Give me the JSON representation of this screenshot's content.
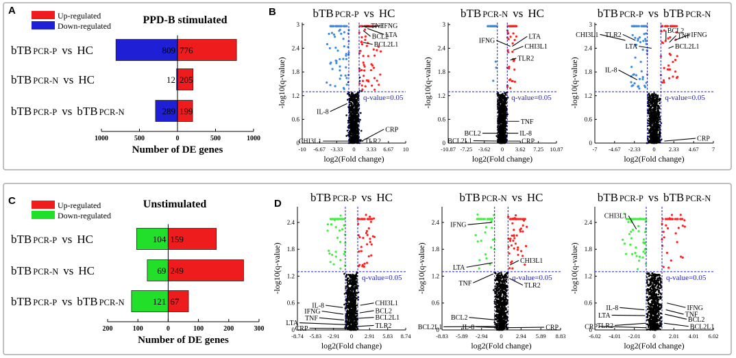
{
  "colors": {
    "up": "#ee1c1c",
    "down_ppd": "#1f1fd6",
    "down_unstim": "#22e02a",
    "vol_up": "#ff2020",
    "vol_down_ppd": "#3a8be0",
    "vol_down_unstim": "#3cf03c",
    "thresh": "#1e1ebe",
    "point": "#000000"
  },
  "chart_data": [
    {
      "panel": "A",
      "type": "bar",
      "title": "PPD-B stimulated",
      "legend": [
        "Up-regulated",
        "Down-regulated"
      ],
      "categories": [
        {
          "main": "bTB",
          "sub1": "PCR-P",
          "mid": "vs",
          "tail": "HC",
          "sub2": ""
        },
        {
          "main": "bTB",
          "sub1": "PCR-N",
          "mid": "vs",
          "tail": "HC",
          "sub2": ""
        },
        {
          "main": "bTB",
          "sub1": "PCR-P",
          "mid": "vs",
          "tail": "bTB",
          "sub2": "PCR-N"
        }
      ],
      "series": [
        {
          "name": "Up-regulated",
          "values": [
            776,
            205,
            199
          ]
        },
        {
          "name": "Down-regulated",
          "values": [
            809,
            12,
            289
          ]
        }
      ],
      "xlabel": "Number of DE genes",
      "xlim": [
        -1000,
        1000
      ],
      "ticks": [
        -1000,
        -500,
        0,
        500,
        1000
      ],
      "tick_labels": [
        "1000",
        "500",
        "0",
        "500",
        "1000"
      ]
    },
    {
      "panel": "C",
      "type": "bar",
      "title": "Unstimulated",
      "legend": [
        "Up-regulated",
        "Down-regulated"
      ],
      "categories": [
        {
          "main": "bTB",
          "sub1": "PCR-P",
          "mid": "vs",
          "tail": "HC",
          "sub2": ""
        },
        {
          "main": "bTB",
          "sub1": "PCR-N",
          "mid": "vs",
          "tail": "HC",
          "sub2": ""
        },
        {
          "main": "bTB",
          "sub1": "PCR-P",
          "mid": "vs",
          "tail": "bTB",
          "sub2": "PCR-N"
        }
      ],
      "series": [
        {
          "name": "Up-regulated",
          "values": [
            159,
            249,
            67
          ]
        },
        {
          "name": "Down-regulated",
          "values": [
            104,
            69,
            121
          ]
        }
      ],
      "xlabel": "Number of DE genes",
      "xlim": [
        -200,
        300
      ],
      "ticks": [
        -200,
        -100,
        0,
        100,
        200,
        300
      ],
      "tick_labels": [
        "200",
        "100",
        "0",
        "100",
        "200",
        "300"
      ]
    },
    {
      "panel": "B1",
      "type": "scatter",
      "palette": "ppd",
      "title": {
        "main": "bTB",
        "sub1": "PCR-P",
        "mid": "vs",
        "tail": "HC",
        "sub2": ""
      },
      "xlabel": "log2(Fold change)",
      "ylabel": "-log10(q-value)",
      "xlim": [
        -10,
        10
      ],
      "ylim": [
        0,
        3.05
      ],
      "xticks": [
        -10,
        -6.67,
        -3.33,
        0,
        3.33,
        6.67,
        10
      ],
      "xtick_labels": [
        "-10",
        "-6.67",
        "-3.33",
        "0",
        "3.33",
        "6.67",
        "10"
      ],
      "yticks": [
        0,
        0.6,
        1.2,
        1.8,
        2.4,
        3
      ],
      "ytick_labels": [
        "0",
        "0.6",
        "1.2",
        "1.8",
        "2.4",
        "3"
      ],
      "fc_cut": 1,
      "q_line": 1.3,
      "q_label": "q-value=0.05",
      "spread": 3.5,
      "sig_max": 6.5,
      "n_sig_up": 45,
      "n_sig_down": 45,
      "genes": [
        {
          "name": "TNF",
          "x": 1.6,
          "y": 2.95,
          "lx": 3.0,
          "ly": 2.97
        },
        {
          "name": "IFNG",
          "x": 2.2,
          "y": 2.93,
          "lx": 5.1,
          "ly": 2.97
        },
        {
          "name": "BCL2",
          "x": 1.8,
          "y": 2.85,
          "lx": 3.2,
          "ly": 2.7
        },
        {
          "name": "LTA",
          "x": 2.6,
          "y": 2.9,
          "lx": 5.8,
          "ly": 2.75
        },
        {
          "name": "BCL2L1",
          "x": 1.7,
          "y": 2.55,
          "lx": 3.6,
          "ly": 2.5
        },
        {
          "name": "IL-8",
          "x": -1.3,
          "y": 1.0,
          "lx": -4.6,
          "ly": 0.8
        },
        {
          "name": "CRP",
          "x": 1.5,
          "y": 0.05,
          "lx": 5.8,
          "ly": 0.35
        },
        {
          "name": "CHI3L1",
          "x": -0.4,
          "y": 0.05,
          "lx": -6.0,
          "ly": 0.05
        },
        {
          "name": "TLR2",
          "x": 0.4,
          "y": 0.05,
          "lx": 1.8,
          "ly": 0.05
        }
      ]
    },
    {
      "panel": "B2",
      "type": "scatter",
      "palette": "ppd",
      "title": {
        "main": "bTB",
        "sub1": "PCR-N",
        "mid": "vs",
        "tail": "HC",
        "sub2": ""
      },
      "xlabel": "log2(Fold change)",
      "ylabel": "-log10(q-value)",
      "xlim": [
        -10.87,
        10.87
      ],
      "ylim": [
        0,
        3.05
      ],
      "xticks": [
        -10.87,
        -7.25,
        -3.62,
        0,
        3.62,
        7.25,
        10.87
      ],
      "xtick_labels": [
        "-10.87",
        "-7.25",
        "-3.62",
        "0",
        "3.62",
        "7.25",
        "10.87"
      ],
      "yticks": [
        0,
        0.6,
        1.2,
        1.8,
        2.4,
        3
      ],
      "ytick_labels": [
        "0",
        "0.6",
        "1.2",
        "1.8",
        "2.4",
        "3"
      ],
      "fc_cut": 1,
      "q_line": 1.3,
      "q_label": "q-value=0.05",
      "spread": 2.6,
      "sig_max": 3.5,
      "n_sig_up": 28,
      "n_sig_down": 3,
      "genes": [
        {
          "name": "IFNG",
          "x": 1.6,
          "y": 2.45,
          "lx": -1.2,
          "ly": 2.6
        },
        {
          "name": "LTA",
          "x": 2.0,
          "y": 2.45,
          "lx": 5.0,
          "ly": 2.7
        },
        {
          "name": "CHI3L1",
          "x": 2.2,
          "y": 2.35,
          "lx": 4.2,
          "ly": 2.45
        },
        {
          "name": "TLR2",
          "x": 1.6,
          "y": 2.1,
          "lx": 2.8,
          "ly": 2.15
        },
        {
          "name": "TNF",
          "x": 0.8,
          "y": 0.55,
          "lx": 3.4,
          "ly": 0.55
        },
        {
          "name": "IL-8",
          "x": 0.7,
          "y": 0.25,
          "lx": 3.2,
          "ly": 0.25
        },
        {
          "name": "BCL2",
          "x": -0.3,
          "y": 0.25,
          "lx": -4.0,
          "ly": 0.25
        },
        {
          "name": "BCL2L1",
          "x": -0.3,
          "y": 0.05,
          "lx": -5.8,
          "ly": 0.06
        },
        {
          "name": "CRP",
          "x": 0.4,
          "y": 0.05,
          "lx": 3.6,
          "ly": 0.05
        }
      ]
    },
    {
      "panel": "B3",
      "type": "scatter",
      "palette": "ppd",
      "title": {
        "main": "bTB",
        "sub1": "PCR-P",
        "mid": "vs",
        "tail": "bTB",
        "sub2": "PCR-N"
      },
      "xlabel": "log2(Fold change)",
      "ylabel": "-log10(q-value)",
      "xlim": [
        -7,
        7
      ],
      "ylim": [
        0,
        3.05
      ],
      "xticks": [
        -7,
        -4.67,
        -2.33,
        0,
        2.33,
        4.67,
        7
      ],
      "xtick_labels": [
        "-7",
        "-4.67",
        "-2.33",
        "0",
        "2.33",
        "4.67",
        "7"
      ],
      "yticks": [
        0,
        0.6,
        1.2,
        1.8,
        2.4,
        3
      ],
      "ytick_labels": [
        "0",
        "0.6",
        "1.2",
        "1.8",
        "2.4",
        "3"
      ],
      "fc_cut": 0.8,
      "q_line": 1.3,
      "q_label": "q-value=0.05",
      "spread": 1.9,
      "sig_max": 3.5,
      "n_sig_up": 30,
      "n_sig_down": 40,
      "genes": [
        {
          "name": "CHI3L1",
          "x": -3.4,
          "y": 2.6,
          "lx": -6.4,
          "ly": 2.75
        },
        {
          "name": "TLR2",
          "x": -2.2,
          "y": 2.6,
          "lx": -3.7,
          "ly": 2.75
        },
        {
          "name": "LTA",
          "x": -0.3,
          "y": 2.4,
          "lx": -1.8,
          "ly": 2.45
        },
        {
          "name": "BCL2",
          "x": 1.4,
          "y": 2.6,
          "lx": 1.4,
          "ly": 2.85
        },
        {
          "name": "TNF",
          "x": 1.8,
          "y": 2.55,
          "lx": 2.6,
          "ly": 2.72
        },
        {
          "name": "IFNG",
          "x": 2.4,
          "y": 2.6,
          "lx": 4.2,
          "ly": 2.75
        },
        {
          "name": "BCL2L1",
          "x": 1.7,
          "y": 2.4,
          "lx": 2.3,
          "ly": 2.45
        },
        {
          "name": "IL-8",
          "x": -2.0,
          "y": 1.6,
          "lx": -4.2,
          "ly": 1.85
        },
        {
          "name": "CRP",
          "x": 1.2,
          "y": 0.05,
          "lx": 4.9,
          "ly": 0.12
        }
      ]
    },
    {
      "panel": "D1",
      "type": "scatter",
      "palette": "unstim",
      "title": {
        "main": "bTB",
        "sub1": "PCR-P",
        "mid": "vs",
        "tail": "HC",
        "sub2": ""
      },
      "xlabel": "log2(Fold change)",
      "ylabel": "-log10(q-value)",
      "xlim": [
        -8.74,
        8.74
      ],
      "ylim": [
        0,
        2.75
      ],
      "xticks": [
        -8.74,
        -5.83,
        -2.91,
        0,
        2.91,
        5.83,
        8.74
      ],
      "xtick_labels": [
        "-8.74",
        "-5.83",
        "-2.91",
        "0",
        "2.91",
        "5.83",
        "8.74"
      ],
      "yticks": [
        0,
        0.6,
        1.2,
        1.8,
        2.4
      ],
      "ytick_labels": [
        "0",
        "0.6",
        "1.2",
        "1.8",
        "2.4"
      ],
      "fc_cut": 1,
      "q_line": 1.3,
      "q_label": "q-value=0.05",
      "spread": 2.8,
      "sig_max": 4.6,
      "n_sig_up": 30,
      "n_sig_down": 25,
      "genes": [
        {
          "name": "CHI3L1",
          "x": 1.4,
          "y": 0.55,
          "lx": 3.6,
          "ly": 0.6
        },
        {
          "name": "BCL2",
          "x": 1.3,
          "y": 0.38,
          "lx": 3.6,
          "ly": 0.43
        },
        {
          "name": "BCL2L1",
          "x": 1.2,
          "y": 0.26,
          "lx": 3.6,
          "ly": 0.28
        },
        {
          "name": "TLR2",
          "x": 1.0,
          "y": 0.08,
          "lx": 3.6,
          "ly": 0.1
        },
        {
          "name": "IL-8",
          "x": -1.4,
          "y": 0.5,
          "lx": -4.2,
          "ly": 0.55
        },
        {
          "name": "IFNG",
          "x": -1.3,
          "y": 0.35,
          "lx": -4.8,
          "ly": 0.42
        },
        {
          "name": "TNF",
          "x": -1.2,
          "y": 0.22,
          "lx": -5.2,
          "ly": 0.27
        },
        {
          "name": "LTA",
          "x": -1.0,
          "y": 0.12,
          "lx": -8.4,
          "ly": 0.16
        },
        {
          "name": "CRP",
          "x": -0.8,
          "y": 0.03,
          "lx": -6.8,
          "ly": 0.04
        }
      ]
    },
    {
      "panel": "D2",
      "type": "scatter",
      "palette": "unstim",
      "title": {
        "main": "bTB",
        "sub1": "PCR-N",
        "mid": "vs",
        "tail": "HC",
        "sub2": ""
      },
      "xlabel": "log2(Fold change)",
      "ylabel": "-log10(q-value)",
      "xlim": [
        -8.83,
        8.83
      ],
      "ylim": [
        0,
        2.75
      ],
      "xticks": [
        -8.83,
        -5.89,
        -2.94,
        0,
        2.94,
        5.89,
        8.83
      ],
      "xtick_labels": [
        "-8.83",
        "-5.89",
        "-2.94",
        "0",
        "2.94",
        "5.89",
        "8.83"
      ],
      "yticks": [
        0,
        0.6,
        1.2,
        1.8,
        2.4
      ],
      "ytick_labels": [
        "0",
        "0.6",
        "1.2",
        "1.8",
        "2.4"
      ],
      "fc_cut": 1,
      "q_line": 1.3,
      "q_label": "q-value=0.05",
      "spread": 2.6,
      "sig_max": 4.8,
      "n_sig_up": 40,
      "n_sig_down": 18,
      "genes": [
        {
          "name": "IFNG",
          "x": -1.4,
          "y": 2.4,
          "lx": -5.0,
          "ly": 2.35
        },
        {
          "name": "CHI3L1",
          "x": 1.3,
          "y": 1.45,
          "lx": 2.6,
          "ly": 1.55
        },
        {
          "name": "LTA",
          "x": -1.3,
          "y": 1.5,
          "lx": -5.2,
          "ly": 1.4
        },
        {
          "name": "TNF",
          "x": -1.2,
          "y": 1.25,
          "lx": -4.2,
          "ly": 1.05
        },
        {
          "name": "TLR2",
          "x": 1.2,
          "y": 1.15,
          "lx": 3.2,
          "ly": 1.0
        },
        {
          "name": "BCL2",
          "x": -0.6,
          "y": 0.22,
          "lx": -4.8,
          "ly": 0.28
        },
        {
          "name": "BCL2L1",
          "x": -0.5,
          "y": 0.08,
          "lx": -8.6,
          "ly": 0.07
        },
        {
          "name": "IL-8",
          "x": -0.3,
          "y": 0.05,
          "lx": -3.8,
          "ly": 0.07
        },
        {
          "name": "CRP",
          "x": 0.6,
          "y": 0.05,
          "lx": 6.4,
          "ly": 0.06
        }
      ]
    },
    {
      "panel": "D3",
      "type": "scatter",
      "palette": "unstim",
      "title": {
        "main": "bTB",
        "sub1": "PCR-P",
        "mid": "vs",
        "tail": "bTB",
        "sub2": "PCR-N"
      },
      "xlabel": "log2(Fold change)",
      "ylabel": "-log10(q-value)",
      "xlim": [
        -6.02,
        6.02
      ],
      "ylim": [
        0,
        2.75
      ],
      "xticks": [
        -6.02,
        -4.01,
        -2.01,
        0,
        2.01,
        4.01,
        6.02
      ],
      "xtick_labels": [
        "-6.02",
        "-4.01",
        "-2.01",
        "0",
        "2.01",
        "4.01",
        "6.02"
      ],
      "yticks": [
        0,
        0.6,
        1.2,
        1.8,
        2.4
      ],
      "ytick_labels": [
        "0",
        "0.6",
        "1.2",
        "1.8",
        "2.4"
      ],
      "fc_cut": 0.8,
      "q_line": 1.3,
      "q_label": "q-value=0.05",
      "spread": 1.8,
      "sig_max": 3.8,
      "n_sig_up": 22,
      "n_sig_down": 40,
      "genes": [
        {
          "name": "CHI3L1",
          "x": -1.8,
          "y": 2.25,
          "lx": -2.6,
          "ly": 2.55
        },
        {
          "name": "IFNG",
          "x": 1.3,
          "y": 0.6,
          "lx": 3.2,
          "ly": 0.5
        },
        {
          "name": "TNF",
          "x": 1.2,
          "y": 0.45,
          "lx": 3.0,
          "ly": 0.35
        },
        {
          "name": "BCL2",
          "x": 1.1,
          "y": 0.35,
          "lx": 3.3,
          "ly": 0.24
        },
        {
          "name": "BCL2L1",
          "x": 1.0,
          "y": 0.15,
          "lx": 3.5,
          "ly": 0.08
        },
        {
          "name": "IL-8",
          "x": -1.0,
          "y": 0.45,
          "lx": -3.5,
          "ly": 0.5
        },
        {
          "name": "LTA",
          "x": -0.9,
          "y": 0.32,
          "lx": -4.3,
          "ly": 0.33
        },
        {
          "name": "TLR2",
          "x": -0.8,
          "y": 0.15,
          "lx": -4.0,
          "ly": 0.1
        },
        {
          "name": "CRP",
          "x": -0.8,
          "y": 0.05,
          "lx": -5.6,
          "ly": 0.08
        }
      ]
    }
  ],
  "panel_letters": [
    "A",
    "B",
    "C",
    "D"
  ]
}
